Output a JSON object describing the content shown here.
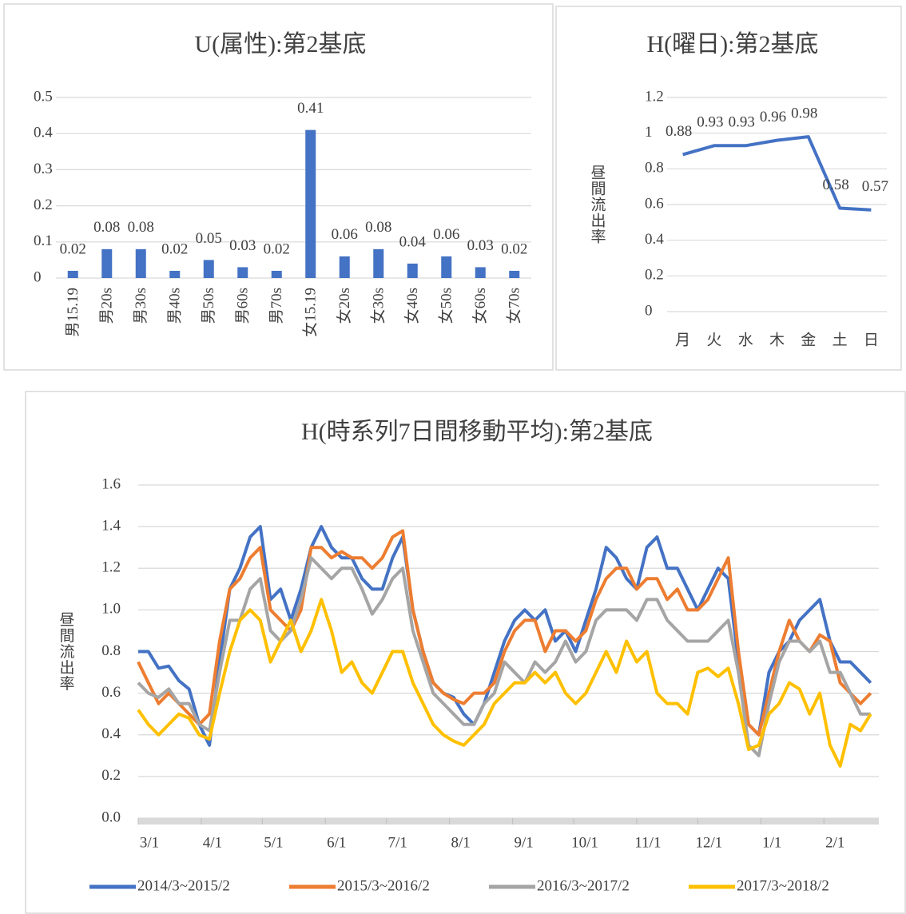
{
  "chart_data": [
    {
      "type": "bar",
      "title": "U(属性):第2基底",
      "categories": [
        "男15.19",
        "男20s",
        "男30s",
        "男40s",
        "男50s",
        "男60s",
        "男70s",
        "女15.19",
        "女20s",
        "女30s",
        "女40s",
        "女50s",
        "女60s",
        "女70s"
      ],
      "values": [
        0.02,
        0.08,
        0.08,
        0.02,
        0.05,
        0.03,
        0.02,
        0.41,
        0.06,
        0.08,
        0.04,
        0.06,
        0.03,
        0.02
      ],
      "color": "#4472c4",
      "ylim": [
        0,
        0.5
      ],
      "yticks": [
        0,
        0.1,
        0.2,
        0.3,
        0.4,
        0.5
      ],
      "grid": true
    },
    {
      "type": "line",
      "title": "H(曜日):第2基底",
      "ylabel": "昼間流出率",
      "categories": [
        "月",
        "火",
        "水",
        "木",
        "金",
        "土",
        "日"
      ],
      "values": [
        0.88,
        0.93,
        0.93,
        0.96,
        0.98,
        0.58,
        0.57
      ],
      "color": "#4472c4",
      "ylim": [
        0,
        1.2
      ],
      "yticks": [
        0,
        0.2,
        0.4,
        0.6,
        0.8,
        1,
        1.2
      ],
      "grid": true
    },
    {
      "type": "line",
      "title": "H(時系列7日間移動平均):第2基底",
      "ylabel": "昼間流出率",
      "x": [
        0,
        5,
        10,
        15,
        20,
        25,
        30,
        35,
        40,
        45,
        50,
        55,
        60,
        65,
        70,
        75,
        80,
        85,
        90,
        95,
        100,
        105,
        110,
        115,
        120,
        125,
        130,
        135,
        140,
        145,
        150,
        155,
        160,
        165,
        170,
        175,
        180,
        185,
        190,
        195,
        200,
        205,
        210,
        215,
        220,
        225,
        230,
        235,
        240,
        245,
        250,
        255,
        260,
        265,
        270,
        275,
        280,
        285,
        290,
        295,
        300,
        305,
        310,
        315,
        320,
        325,
        330,
        335,
        340,
        345,
        350,
        355,
        360
      ],
      "xlim": [
        0,
        364
      ],
      "xticks": [
        {
          "value": 0,
          "label": "3/1"
        },
        {
          "value": 31,
          "label": "4/1"
        },
        {
          "value": 61,
          "label": "5/1"
        },
        {
          "value": 92,
          "label": "6/1"
        },
        {
          "value": 122,
          "label": "7/1"
        },
        {
          "value": 153,
          "label": "8/1"
        },
        {
          "value": 184,
          "label": "9/1"
        },
        {
          "value": 214,
          "label": "10/1"
        },
        {
          "value": 245,
          "label": "11/1"
        },
        {
          "value": 275,
          "label": "12/1"
        },
        {
          "value": 306,
          "label": "1/1"
        },
        {
          "value": 337,
          "label": "2/1"
        }
      ],
      "ylim": [
        0,
        1.6
      ],
      "yticks": [
        {
          "value": 0,
          "label": "0.0"
        },
        0.2,
        0.4,
        0.6,
        0.8,
        {
          "value": 1,
          "label": "1.0"
        },
        1.2,
        1.4,
        1.6
      ],
      "grid": true,
      "legend": "bottom",
      "series": [
        {
          "name": "2014/3~2015/2",
          "color": "#4472c4",
          "values": [
            0.8,
            0.8,
            0.72,
            0.73,
            0.66,
            0.62,
            0.45,
            0.35,
            0.75,
            1.1,
            1.2,
            1.35,
            1.4,
            1.05,
            1.1,
            0.95,
            1.1,
            1.3,
            1.4,
            1.3,
            1.25,
            1.25,
            1.15,
            1.1,
            1.1,
            1.25,
            1.35,
            1.0,
            0.8,
            0.65,
            0.6,
            0.58,
            0.5,
            0.45,
            0.55,
            0.7,
            0.85,
            0.95,
            1.0,
            0.95,
            1.0,
            0.85,
            0.9,
            0.8,
            0.95,
            1.1,
            1.3,
            1.25,
            1.15,
            1.1,
            1.3,
            1.35,
            1.2,
            1.2,
            1.1,
            1.0,
            1.1,
            1.2,
            1.15,
            0.75,
            0.45,
            0.4,
            0.7,
            0.8,
            0.85,
            0.95,
            1.0,
            1.05,
            0.85,
            0.75,
            0.75,
            0.7,
            0.65
          ]
        },
        {
          "name": "2015/3~2016/2",
          "color": "#ed7d31",
          "values": [
            0.75,
            0.65,
            0.55,
            0.6,
            0.55,
            0.5,
            0.45,
            0.5,
            0.85,
            1.1,
            1.15,
            1.25,
            1.3,
            1.0,
            0.95,
            0.9,
            1.0,
            1.3,
            1.3,
            1.25,
            1.28,
            1.25,
            1.25,
            1.2,
            1.25,
            1.35,
            1.38,
            1.0,
            0.8,
            0.65,
            0.6,
            0.57,
            0.55,
            0.6,
            0.6,
            0.65,
            0.8,
            0.9,
            0.95,
            0.95,
            0.8,
            0.9,
            0.9,
            0.85,
            0.9,
            1.05,
            1.15,
            1.2,
            1.2,
            1.1,
            1.15,
            1.15,
            1.05,
            1.1,
            1.0,
            1.0,
            1.05,
            1.15,
            1.25,
            0.8,
            0.45,
            0.4,
            0.6,
            0.8,
            0.95,
            0.85,
            0.8,
            0.88,
            0.85,
            0.65,
            0.6,
            0.55,
            0.6
          ]
        },
        {
          "name": "2016/3~2017/2",
          "color": "#a5a5a5",
          "values": [
            0.65,
            0.6,
            0.58,
            0.62,
            0.55,
            0.55,
            0.45,
            0.42,
            0.7,
            0.95,
            0.95,
            1.1,
            1.15,
            0.9,
            0.85,
            0.9,
            1.05,
            1.25,
            1.2,
            1.15,
            1.2,
            1.2,
            1.1,
            0.98,
            1.05,
            1.15,
            1.2,
            0.9,
            0.75,
            0.6,
            0.55,
            0.5,
            0.45,
            0.45,
            0.55,
            0.6,
            0.75,
            0.7,
            0.65,
            0.75,
            0.7,
            0.75,
            0.85,
            0.75,
            0.8,
            0.95,
            1.0,
            1.0,
            1.0,
            0.95,
            1.05,
            1.05,
            0.95,
            0.9,
            0.85,
            0.85,
            0.85,
            0.9,
            0.95,
            0.7,
            0.35,
            0.3,
            0.55,
            0.75,
            0.85,
            0.85,
            0.8,
            0.85,
            0.7,
            0.7,
            0.6,
            0.5,
            0.5
          ]
        },
        {
          "name": "2017/3~2018/2",
          "color": "#ffc000",
          "values": [
            0.52,
            0.45,
            0.4,
            0.45,
            0.5,
            0.48,
            0.4,
            0.38,
            0.6,
            0.8,
            0.95,
            1.0,
            0.95,
            0.75,
            0.85,
            0.95,
            0.8,
            0.9,
            1.05,
            0.9,
            0.7,
            0.75,
            0.65,
            0.6,
            0.7,
            0.8,
            0.8,
            0.65,
            0.55,
            0.45,
            0.4,
            0.37,
            0.35,
            0.4,
            0.45,
            0.55,
            0.6,
            0.65,
            0.65,
            0.7,
            0.65,
            0.7,
            0.6,
            0.55,
            0.6,
            0.7,
            0.8,
            0.7,
            0.85,
            0.75,
            0.8,
            0.6,
            0.55,
            0.55,
            0.5,
            0.7,
            0.72,
            0.68,
            0.72,
            0.55,
            0.33,
            0.35,
            0.5,
            0.55,
            0.65,
            0.62,
            0.5,
            0.6,
            0.35,
            0.25,
            0.45,
            0.42,
            0.5
          ]
        }
      ]
    }
  ]
}
